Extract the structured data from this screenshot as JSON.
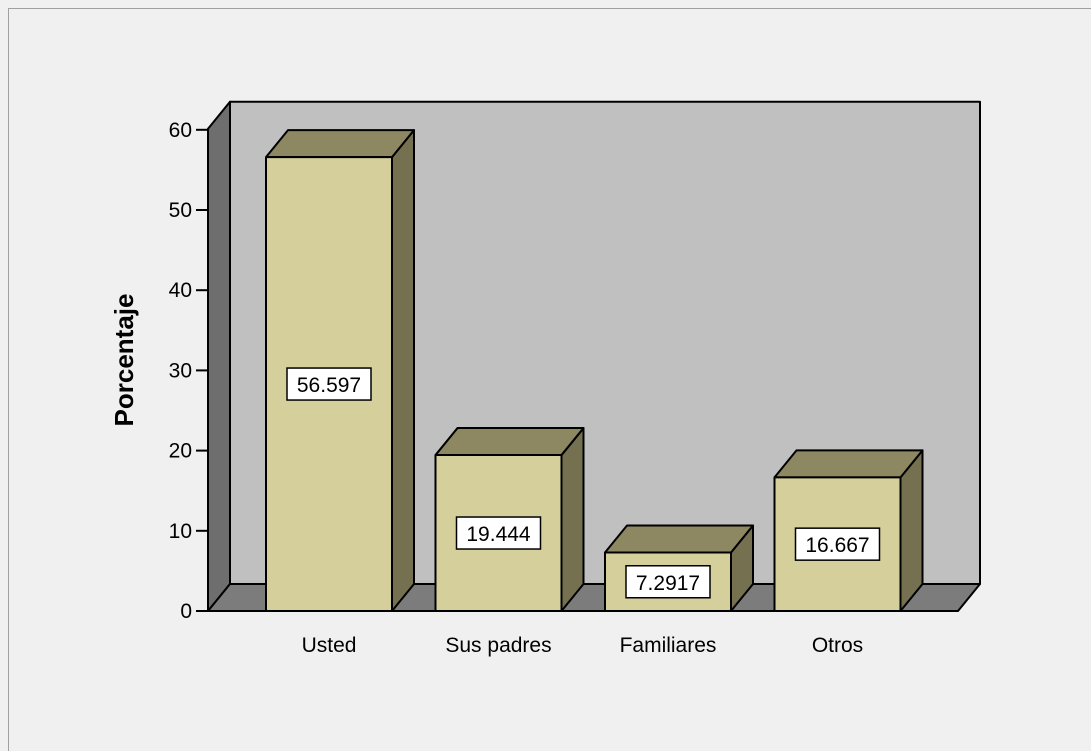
{
  "chart_data": {
    "type": "bar",
    "style": "3d",
    "title": "",
    "xlabel": "",
    "ylabel": "Porcentaje",
    "ylim": [
      0,
      60
    ],
    "yticks": [
      0,
      10,
      20,
      30,
      40,
      50,
      60
    ],
    "grid": false,
    "categories": [
      "Usted",
      "Sus padres",
      "Familiares",
      "Otros"
    ],
    "values": [
      56.597,
      19.444,
      7.2917,
      16.667
    ],
    "data_labels": [
      "56.597",
      "19.444",
      "7.2917",
      "16.667"
    ],
    "colors": {
      "bar_front": "#d5cf9b",
      "bar_top": "#8d8861",
      "bar_side": "#757150",
      "back_wall": "#c0c0c0",
      "left_wall": "#6e6e6e",
      "floor": "#7c7c7c",
      "frame_bg": "#f0f0f0"
    }
  }
}
